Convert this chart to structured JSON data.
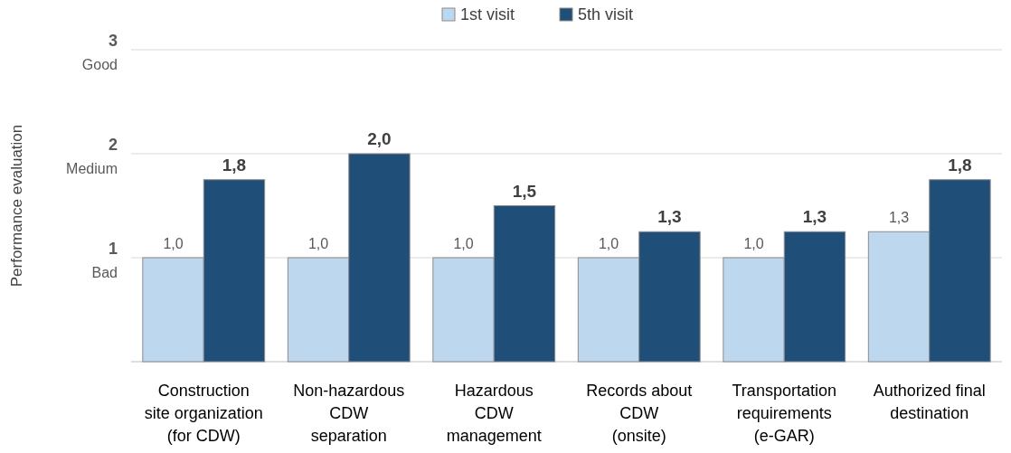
{
  "chart_data": {
    "type": "bar",
    "ylabel": "Performance evaluation",
    "categories": [
      "Construction\nsite organization\n(for CDW)",
      "Non-hazardous\nCDW\nseparation",
      "Hazardous\nCDW\nmanagement",
      "Records about\nCDW\n(onsite)",
      "Transportation\nrequirements\n(e-GAR)",
      "Authorized final\ndestination"
    ],
    "series": [
      {
        "name": "1st visit",
        "color": "#bdd7ee",
        "values": [
          1,
          1,
          1,
          1,
          1,
          1.25
        ],
        "value_labels": [
          "1,0",
          "1,0",
          "1,0",
          "1,0",
          "1,0",
          "1,3"
        ]
      },
      {
        "name": "5th visit",
        "color": "#1f4e79",
        "values": [
          1.75,
          2,
          1.5,
          1.25,
          1.25,
          1.75
        ],
        "value_labels": [
          "1,8",
          "2,0",
          "1,5",
          "1,3",
          "1,3",
          "1,8"
        ]
      }
    ],
    "ylim": [
      0,
      3
    ],
    "yticks": [
      {
        "value": 1,
        "label": "1\nBad"
      },
      {
        "value": 2,
        "label": "2\nMedium"
      },
      {
        "value": 3,
        "label": "3\nGood"
      }
    ],
    "grid": "y",
    "legend": "top"
  }
}
